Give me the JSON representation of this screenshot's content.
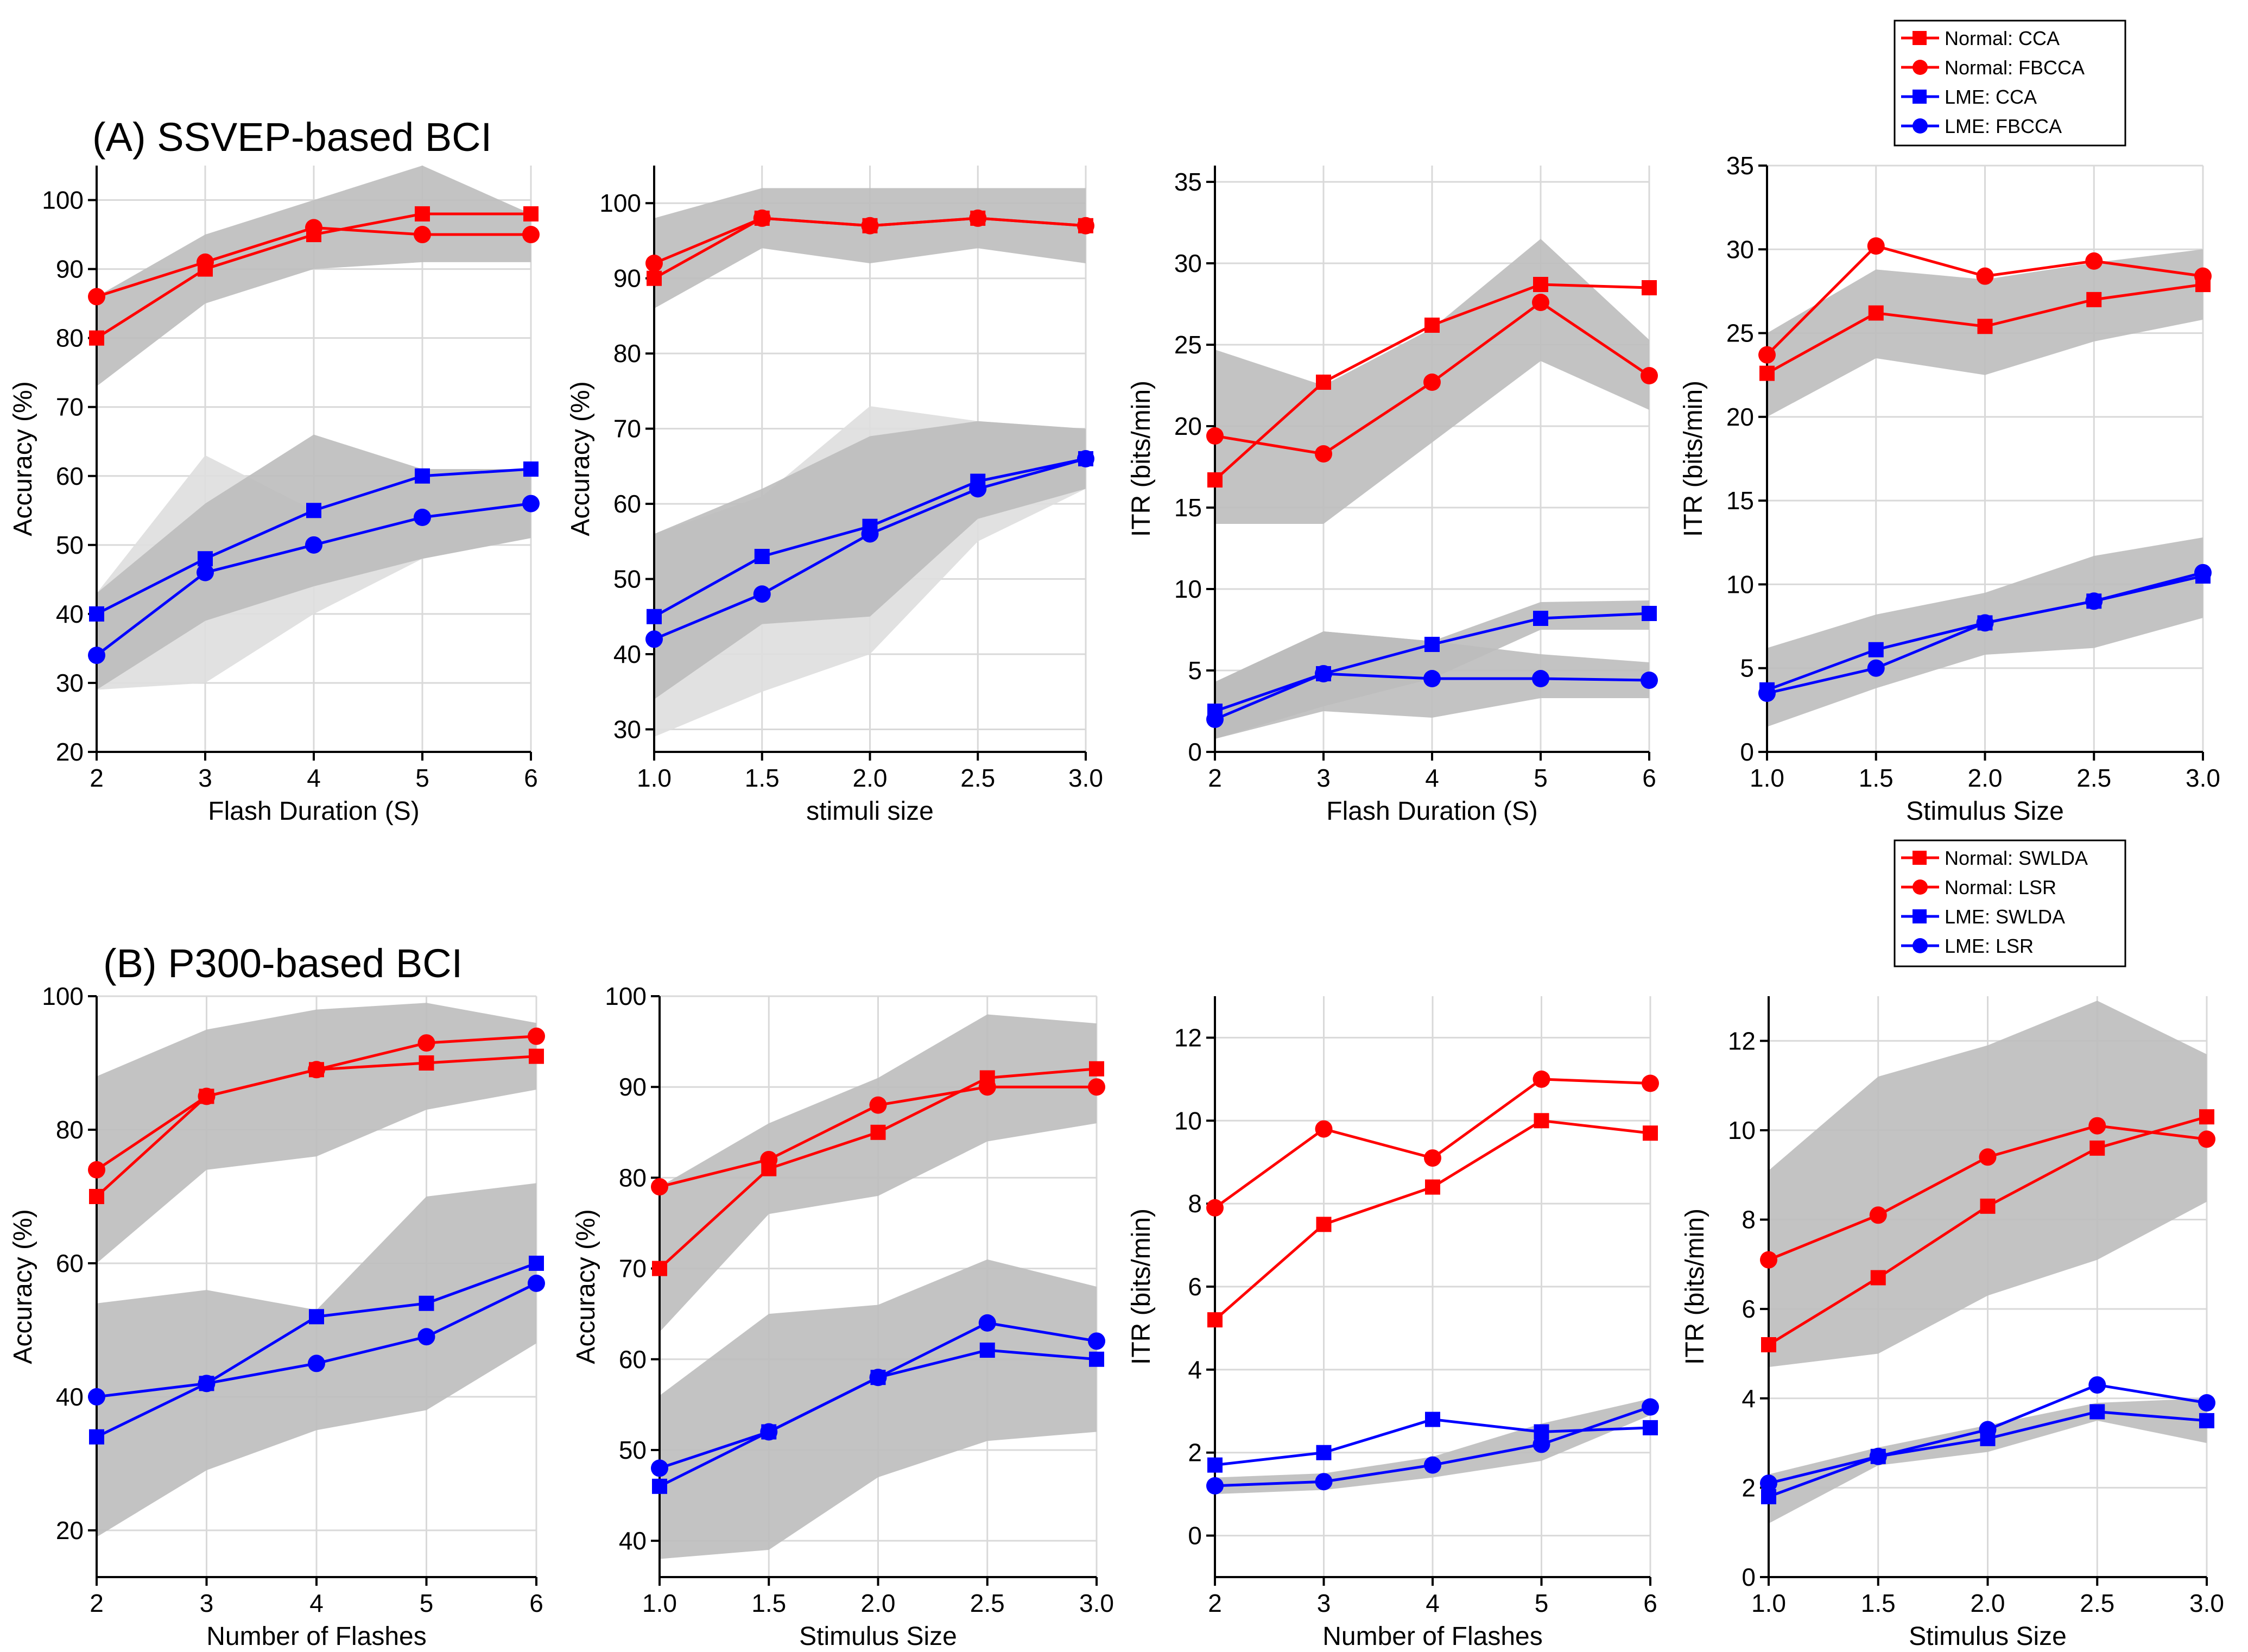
{
  "sections": [
    {
      "title": "(A) SSVEP-based BCI"
    },
    {
      "title": "(B) P300-based BCI"
    }
  ],
  "legends": [
    {
      "items": [
        {
          "label": "Normal: CCA",
          "color": "#ff0000",
          "marker": "square"
        },
        {
          "label": "Normal: FBCCA",
          "color": "#ff0000",
          "marker": "circle"
        },
        {
          "label": "LME: CCA",
          "color": "#0000ff",
          "marker": "square"
        },
        {
          "label": "LME: FBCCA",
          "color": "#0000ff",
          "marker": "circle"
        }
      ]
    },
    {
      "items": [
        {
          "label": "Normal: SWLDA",
          "color": "#ff0000",
          "marker": "square"
        },
        {
          "label": "Normal: LSR",
          "color": "#ff0000",
          "marker": "circle"
        },
        {
          "label": "LME: SWLDA",
          "color": "#0000ff",
          "marker": "square"
        },
        {
          "label": "LME: LSR",
          "color": "#0000ff",
          "marker": "circle"
        }
      ]
    }
  ],
  "colors": {
    "normal": "#ff0000",
    "lme": "#0000ff",
    "band": "#bdbdbd",
    "band_light": "#dedede",
    "grid": "#d9d9d9"
  },
  "chart_data": [
    {
      "type": "line",
      "xlabel": "Flash Duration (S)",
      "ylabel": "Accuracy (%)",
      "x": [
        2,
        3,
        4,
        5,
        6
      ],
      "xticks": [
        "2",
        "3",
        "4",
        "5",
        "6"
      ],
      "ylim": [
        20,
        105
      ],
      "yticks": [
        20,
        30,
        40,
        50,
        60,
        70,
        80,
        90,
        100
      ],
      "series": [
        {
          "name": "Normal: CCA",
          "group": "normal",
          "marker": "square",
          "values": [
            80,
            90,
            95,
            98,
            98
          ],
          "band": [
            [
              73,
              85,
              90,
              91,
              91
            ],
            [
              86,
              95,
              100,
              105,
              98
            ]
          ]
        },
        {
          "name": "Normal: FBCCA",
          "group": "normal",
          "marker": "circle",
          "values": [
            86,
            91,
            96,
            95,
            95
          ]
        },
        {
          "name": "LME: CCA",
          "group": "lme",
          "marker": "square",
          "values": [
            40,
            48,
            55,
            60,
            61
          ],
          "band": [
            [
              29,
              30,
              40,
              48,
              51
            ],
            [
              43,
              63,
              55,
              60,
              61
            ]
          ]
        },
        {
          "name": "LME: FBCCA",
          "group": "lme",
          "marker": "circle",
          "values": [
            34,
            46,
            50,
            54,
            56
          ],
          "band": [
            [
              29,
              39,
              44,
              48,
              51
            ],
            [
              43,
              56,
              66,
              61,
              61
            ]
          ]
        }
      ]
    },
    {
      "type": "line",
      "xlabel": "stimuli size",
      "ylabel": "Accuracy (%)",
      "x": [
        1.0,
        1.5,
        2.0,
        2.5,
        3.0
      ],
      "xticks": [
        "1.0",
        "1.5",
        "2.0",
        "2.5",
        "3.0"
      ],
      "ylim": [
        27,
        105
      ],
      "yticks": [
        30,
        40,
        50,
        60,
        70,
        80,
        90,
        100
      ],
      "series": [
        {
          "name": "Normal: CCA",
          "group": "normal",
          "marker": "square",
          "values": [
            90,
            98,
            97,
            98,
            97
          ],
          "band": [
            [
              86,
              94,
              92,
              94,
              92
            ],
            [
              98,
              102,
              102,
              102,
              102
            ]
          ]
        },
        {
          "name": "Normal: FBCCA",
          "group": "normal",
          "marker": "circle",
          "values": [
            92,
            98,
            97,
            98,
            97
          ]
        },
        {
          "name": "LME: CCA",
          "group": "lme",
          "marker": "square",
          "values": [
            45,
            53,
            57,
            63,
            66
          ],
          "band": [
            [
              29,
              35,
              40,
              55,
              62
            ],
            [
              56,
              61,
              73,
              71,
              70
            ]
          ]
        },
        {
          "name": "LME: FBCCA",
          "group": "lme",
          "marker": "circle",
          "values": [
            42,
            48,
            56,
            62,
            66
          ],
          "band": [
            [
              34,
              44,
              45,
              58,
              62
            ],
            [
              56,
              62,
              69,
              71,
              70
            ]
          ]
        }
      ]
    },
    {
      "type": "line",
      "xlabel": "Flash Duration (S)",
      "ylabel": "ITR (bits/min)",
      "x": [
        2,
        3,
        4,
        5,
        6
      ],
      "xticks": [
        "2",
        "3",
        "4",
        "5",
        "6"
      ],
      "ylim": [
        0,
        36
      ],
      "yticks": [
        0,
        5,
        10,
        15,
        20,
        25,
        30,
        35
      ],
      "series": [
        {
          "name": "Normal: CCA",
          "group": "normal",
          "marker": "square",
          "values": [
            16.7,
            22.7,
            26.2,
            28.7,
            28.5
          ],
          "band": [
            [
              14,
              14,
              19,
              24,
              21
            ],
            [
              24.7,
              22.5,
              26,
              31.5,
              25.3
            ]
          ]
        },
        {
          "name": "Normal: FBCCA",
          "group": "normal",
          "marker": "circle",
          "values": [
            19.4,
            18.3,
            22.7,
            27.6,
            23.1
          ]
        },
        {
          "name": "LME: CCA",
          "group": "lme",
          "marker": "square",
          "values": [
            2.5,
            4.8,
            6.6,
            8.2,
            8.5
          ],
          "band": [
            [
              0.8,
              2.8,
              4.5,
              7.5,
              7.5
            ],
            [
              4.3,
              7.4,
              6.8,
              9.2,
              9.3
            ]
          ]
        },
        {
          "name": "LME: FBCCA",
          "group": "lme",
          "marker": "circle",
          "values": [
            2.0,
            4.8,
            4.5,
            4.5,
            4.4
          ],
          "band": [
            [
              0.8,
              2.5,
              2.1,
              3.3,
              3.3
            ],
            [
              4.3,
              7.4,
              6.8,
              6.0,
              5.5
            ]
          ]
        }
      ]
    },
    {
      "type": "line",
      "xlabel": "Stimulus Size",
      "ylabel": "ITR (bits/min)",
      "x": [
        1.0,
        1.5,
        2.0,
        2.5,
        3.0
      ],
      "xticks": [
        "1.0",
        "1.5",
        "2.0",
        "2.5",
        "3.0"
      ],
      "ylim": [
        0,
        35
      ],
      "yticks": [
        0,
        5,
        10,
        15,
        20,
        25,
        30,
        35
      ],
      "series": [
        {
          "name": "Normal: CCA",
          "group": "normal",
          "marker": "square",
          "values": [
            22.6,
            26.2,
            25.4,
            27.0,
            27.9
          ],
          "band": [
            [
              20,
              23.5,
              22.5,
              24.5,
              25.8
            ],
            [
              25,
              28.8,
              28.2,
              29.2,
              30
            ]
          ]
        },
        {
          "name": "Normal: FBCCA",
          "group": "normal",
          "marker": "circle",
          "values": [
            23.7,
            30.2,
            28.4,
            29.3,
            28.4
          ]
        },
        {
          "name": "LME: CCA",
          "group": "lme",
          "marker": "square",
          "values": [
            3.7,
            6.1,
            7.7,
            9.0,
            10.5
          ],
          "band": [
            [
              1.5,
              3.8,
              5.8,
              6.2,
              8.0
            ],
            [
              6.2,
              8.2,
              9.5,
              11.7,
              12.8
            ]
          ]
        },
        {
          "name": "LME: FBCCA",
          "group": "lme",
          "marker": "circle",
          "values": [
            3.5,
            5.0,
            7.7,
            9.0,
            10.7
          ]
        }
      ]
    },
    {
      "type": "line",
      "xlabel": "Number of Flashes",
      "ylabel": "Accuracy (%)",
      "x": [
        2,
        3,
        4,
        5,
        6
      ],
      "xticks": [
        "2",
        "3",
        "4",
        "5",
        "6"
      ],
      "ylim": [
        13,
        100
      ],
      "yticks": [
        20,
        40,
        60,
        80,
        100
      ],
      "series": [
        {
          "name": "Normal: SWLDA",
          "group": "normal",
          "marker": "square",
          "values": [
            70,
            85,
            89,
            90,
            91
          ],
          "band": [
            [
              60,
              74,
              76,
              83,
              86
            ],
            [
              88,
              95,
              98,
              99,
              96
            ]
          ]
        },
        {
          "name": "Normal: LSR",
          "group": "normal",
          "marker": "circle",
          "values": [
            74,
            85,
            89,
            93,
            94
          ]
        },
        {
          "name": "LME: SWLDA",
          "group": "lme",
          "marker": "square",
          "values": [
            34,
            42,
            52,
            54,
            60
          ],
          "band": [
            [
              19,
              29,
              35,
              38,
              48
            ],
            [
              54,
              56,
              53,
              70,
              72
            ]
          ]
        },
        {
          "name": "LME: LSR",
          "group": "lme",
          "marker": "circle",
          "values": [
            40,
            42,
            45,
            49,
            57
          ]
        }
      ]
    },
    {
      "type": "line",
      "xlabel": "Stimulus Size",
      "ylabel": "Accuracy (%)",
      "x": [
        1.0,
        1.5,
        2.0,
        2.5,
        3.0
      ],
      "xticks": [
        "1.0",
        "1.5",
        "2.0",
        "2.5",
        "3.0"
      ],
      "ylim": [
        36,
        100
      ],
      "yticks": [
        40,
        50,
        60,
        70,
        80,
        90,
        100
      ],
      "series": [
        {
          "name": "Normal: SWLDA",
          "group": "normal",
          "marker": "square",
          "values": [
            70,
            81,
            85,
            91,
            92
          ],
          "band": [
            [
              63,
              76,
              78,
              84,
              86
            ],
            [
              79,
              86,
              91,
              98,
              97
            ]
          ]
        },
        {
          "name": "Normal: LSR",
          "group": "normal",
          "marker": "circle",
          "values": [
            79,
            82,
            88,
            90,
            90
          ]
        },
        {
          "name": "LME: SWLDA",
          "group": "lme",
          "marker": "square",
          "values": [
            46,
            52,
            58,
            61,
            60
          ],
          "band": [
            [
              38,
              39,
              47,
              51,
              52
            ],
            [
              56,
              65,
              66,
              71,
              68
            ]
          ]
        },
        {
          "name": "LME: LSR",
          "group": "lme",
          "marker": "circle",
          "values": [
            48,
            52,
            58,
            64,
            62
          ]
        }
      ]
    },
    {
      "type": "line",
      "xlabel": "Number of Flashes",
      "ylabel": "ITR (bits/min)",
      "x": [
        2,
        3,
        4,
        5,
        6
      ],
      "xticks": [
        "2",
        "3",
        "4",
        "5",
        "6"
      ],
      "ylim": [
        -1,
        13
      ],
      "yticks": [
        0,
        2,
        4,
        6,
        8,
        10,
        12
      ],
      "series": [
        {
          "name": "Normal: SWLDA",
          "group": "normal",
          "marker": "square",
          "values": [
            5.2,
            7.5,
            8.4,
            10.0,
            9.7
          ]
        },
        {
          "name": "Normal: LSR",
          "group": "normal",
          "marker": "circle",
          "values": [
            7.9,
            9.8,
            9.1,
            11.0,
            10.9
          ]
        },
        {
          "name": "LME: SWLDA",
          "group": "lme",
          "marker": "square",
          "values": [
            1.7,
            2.0,
            2.8,
            2.5,
            2.6
          ]
        },
        {
          "name": "LME: LSR",
          "group": "lme",
          "marker": "circle",
          "values": [
            1.2,
            1.3,
            1.7,
            2.2,
            3.1
          ],
          "band": [
            [
              1.0,
              1.1,
              1.4,
              1.8,
              2.9
            ],
            [
              1.4,
              1.5,
              1.9,
              2.7,
              3.3
            ]
          ]
        }
      ]
    },
    {
      "type": "line",
      "xlabel": "Stimulus Size",
      "ylabel": "ITR (bits/min)",
      "x": [
        1.0,
        1.5,
        2.0,
        2.5,
        3.0
      ],
      "xticks": [
        "1.0",
        "1.5",
        "2.0",
        "2.5",
        "3.0"
      ],
      "ylim": [
        0,
        13
      ],
      "yticks": [
        0,
        2,
        4,
        6,
        8,
        10,
        12
      ],
      "series": [
        {
          "name": "Normal: SWLDA",
          "group": "normal",
          "marker": "square",
          "values": [
            5.2,
            6.7,
            8.3,
            9.6,
            10.3
          ]
        },
        {
          "name": "Normal: LSR",
          "group": "normal",
          "marker": "circle",
          "values": [
            7.1,
            8.1,
            9.4,
            10.1,
            9.8
          ],
          "band": [
            [
              4.7,
              5.0,
              6.3,
              7.1,
              8.4
            ],
            [
              9.1,
              11.2,
              11.9,
              12.9,
              11.7
            ]
          ]
        },
        {
          "name": "LME: SWLDA",
          "group": "lme",
          "marker": "square",
          "values": [
            1.8,
            2.7,
            3.1,
            3.7,
            3.5
          ],
          "band": [
            [
              1.2,
              2.5,
              2.8,
              3.5,
              3.0
            ],
            [
              2.3,
              2.9,
              3.4,
              3.9,
              4.0
            ]
          ]
        },
        {
          "name": "LME: LSR",
          "group": "lme",
          "marker": "circle",
          "values": [
            2.1,
            2.7,
            3.3,
            4.3,
            3.9
          ]
        }
      ]
    }
  ]
}
